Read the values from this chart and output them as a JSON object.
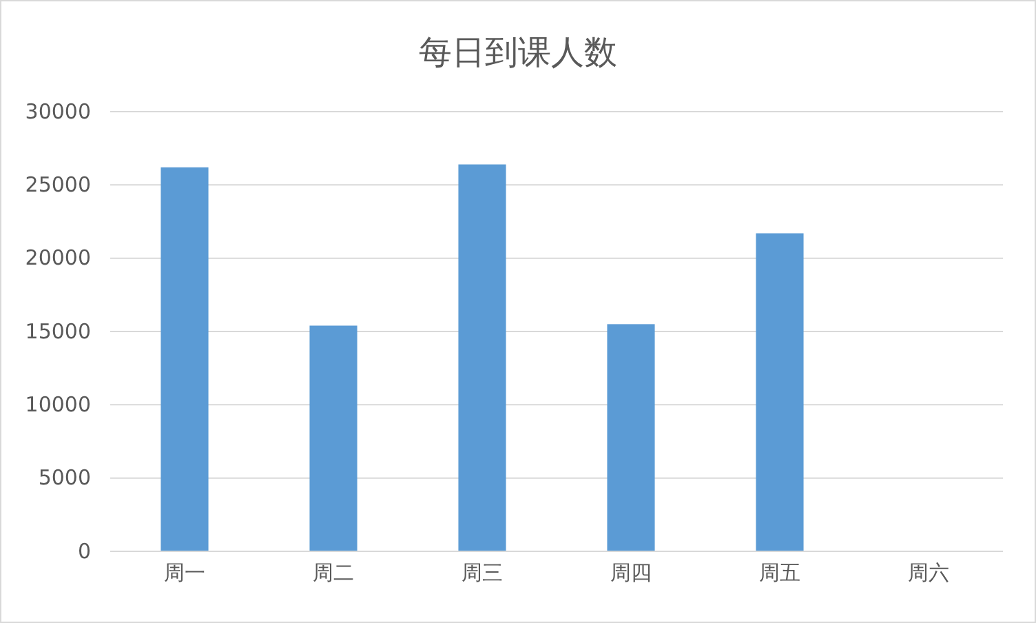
{
  "chart_data": {
    "type": "bar",
    "title": "每日到课人数",
    "categories": [
      "周一",
      "周二",
      "周三",
      "周四",
      "周五",
      "周六"
    ],
    "values": [
      26200,
      15400,
      26400,
      15500,
      21700,
      0
    ],
    "color": "#5b9bd5",
    "ylim": [
      0,
      30000
    ],
    "yticks": [
      0,
      5000,
      10000,
      15000,
      20000,
      25000,
      30000
    ],
    "grid": "y"
  }
}
